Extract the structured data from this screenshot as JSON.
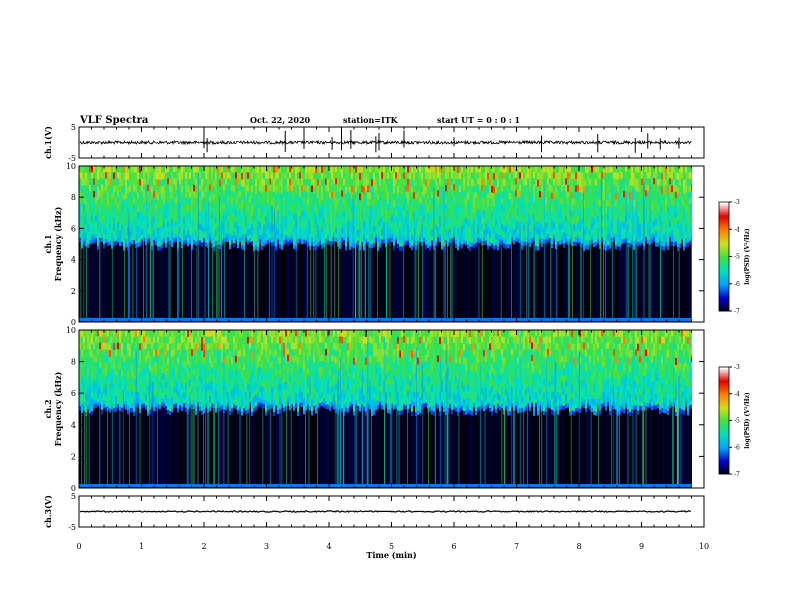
{
  "header": {
    "title": "VLF Spectra",
    "date": "Oct. 22, 2020",
    "station": "station=ITK",
    "start": "start  UT =   0 : 0  : 1"
  },
  "chart_data": [
    {
      "type": "line",
      "panel": "ch1-waveform",
      "ylabel": "ch.1(V)",
      "ylim": [
        -5,
        5
      ],
      "yticks": [
        "5",
        "-5"
      ],
      "baseline": 0,
      "note_values": "waveform baseline near 0 V with spikes"
    },
    {
      "type": "heatmap",
      "panel": "ch1-spectrogram",
      "ylabel": "ch.1\nFrequency (kHz)",
      "ylim": [
        0,
        10
      ],
      "yticks": [
        "0",
        "2",
        "4",
        "6",
        "8",
        "10"
      ],
      "xlim": [
        0,
        10
      ],
      "colorbar": {
        "label": "log(PSD) (V²/Hz)",
        "range": [
          -7,
          -3
        ],
        "ticks": [
          "-3",
          "-4",
          "-5",
          "-6",
          "-7"
        ]
      },
      "noise_floor_top_khz": 5
    },
    {
      "type": "heatmap",
      "panel": "ch2-spectrogram",
      "ylabel": "ch.2\nFrequency (kHz)",
      "ylim": [
        0,
        10
      ],
      "yticks": [
        "0",
        "2",
        "4",
        "6",
        "8",
        "10"
      ],
      "xlim": [
        0,
        10
      ],
      "colorbar": {
        "label": "log(PSD) (V²/Hz)",
        "range": [
          -7,
          -3
        ],
        "ticks": [
          "-3",
          "-4",
          "-5",
          "-6",
          "-7"
        ]
      },
      "noise_floor_top_khz": 5
    },
    {
      "type": "line",
      "panel": "ch3-waveform",
      "ylabel": "ch.3(V)",
      "ylim": [
        -5,
        5
      ],
      "yticks": [
        "5",
        "-5"
      ],
      "baseline": 0
    }
  ],
  "xaxis": {
    "label": "Time  (min)",
    "range": [
      0,
      10
    ],
    "ticks": [
      "0",
      "1",
      "2",
      "3",
      "4",
      "5",
      "6",
      "7",
      "8",
      "9",
      "10"
    ]
  },
  "colors": {
    "background": "#ffffff",
    "axis": "#000000",
    "colormap": [
      "#000000",
      "#0000cc",
      "#00a0ff",
      "#00e0c0",
      "#40e040",
      "#d0e020",
      "#ff8000",
      "#e00000",
      "#ffffff"
    ]
  }
}
